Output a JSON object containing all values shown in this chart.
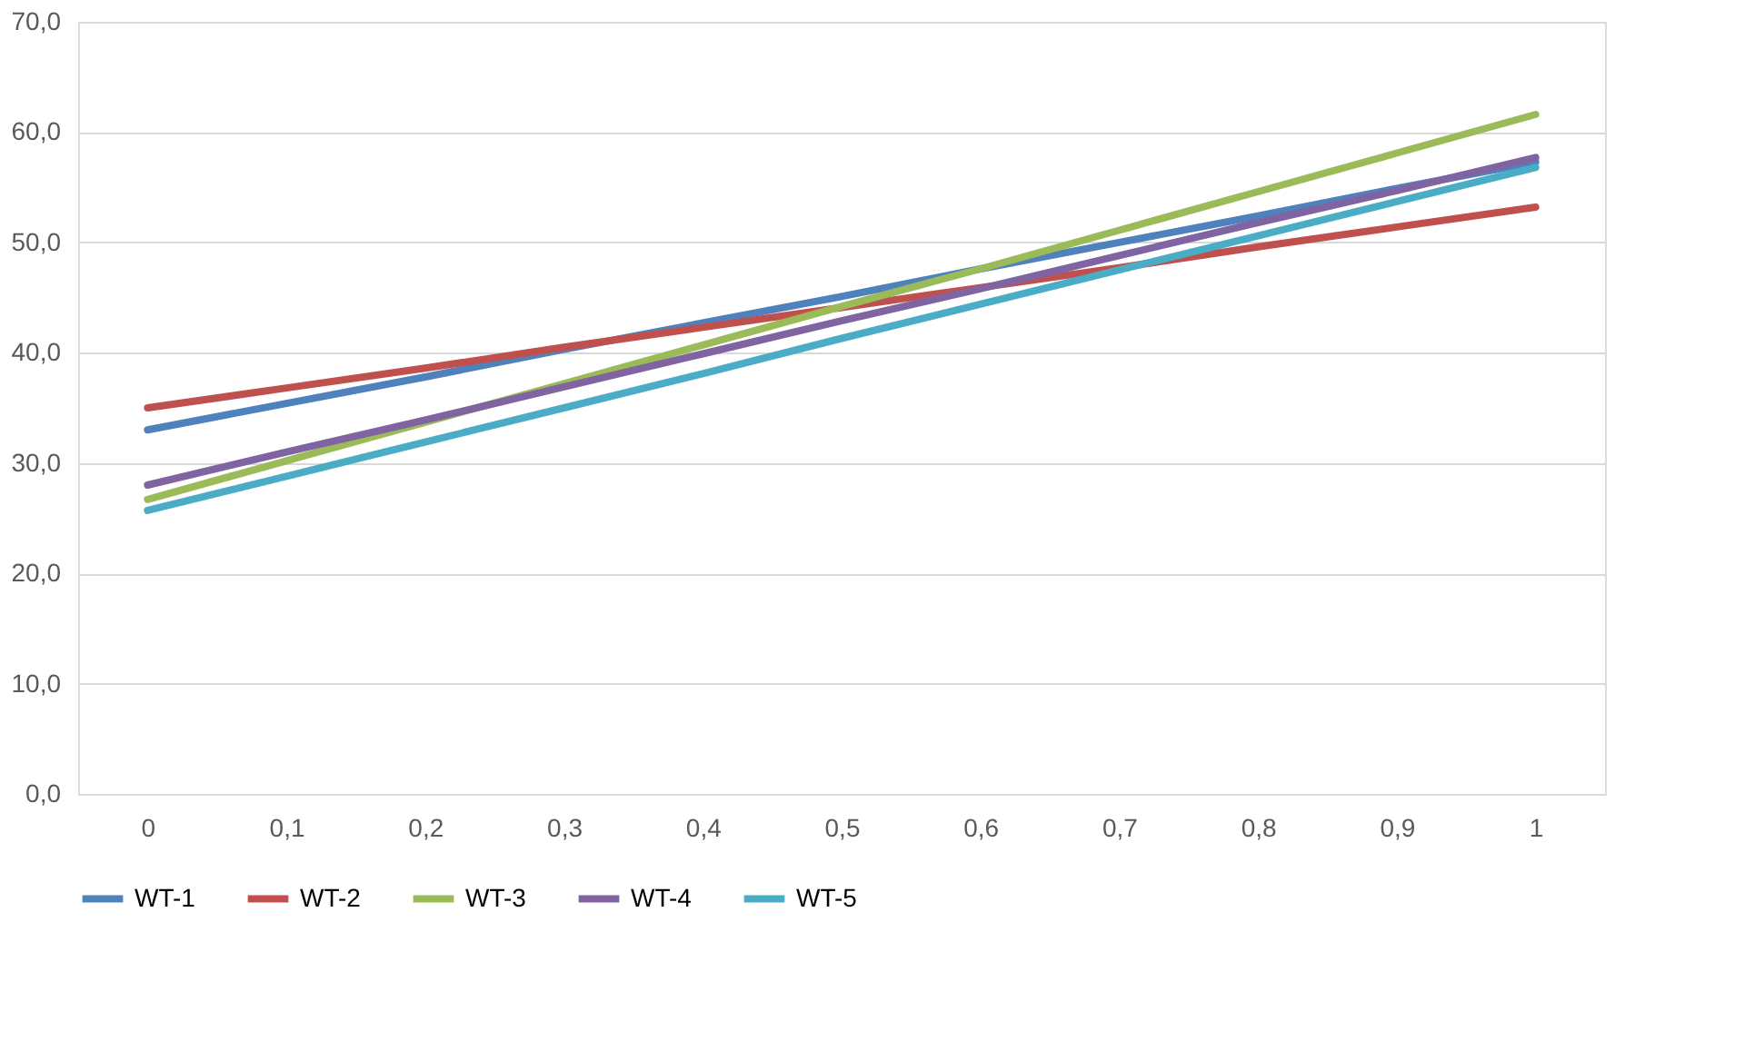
{
  "chart_data": {
    "type": "line",
    "categories": [
      "0",
      "0,1",
      "0,2",
      "0,3",
      "0,4",
      "0,5",
      "0,6",
      "0,7",
      "0,8",
      "0,9",
      "1"
    ],
    "series": [
      {
        "name": "WT-1",
        "color": "#4f81bd",
        "values": [
          33,
          35.4,
          37.8,
          40.3,
          42.7,
          45.1,
          47.6,
          50.0,
          52.4,
          54.9,
          57.3
        ]
      },
      {
        "name": "WT-2",
        "color": "#c0504d",
        "values": [
          35,
          36.8,
          38.6,
          40.5,
          42.3,
          44.1,
          45.9,
          47.7,
          49.6,
          51.4,
          53.2
        ]
      },
      {
        "name": "WT-3",
        "color": "#9bbb59",
        "values": [
          26.7,
          30.2,
          33.7,
          37.2,
          40.7,
          44.2,
          47.6,
          51.1,
          54.6,
          58.1,
          61.6
        ]
      },
      {
        "name": "WT-4",
        "color": "#8064a2",
        "values": [
          28,
          31,
          33.9,
          36.9,
          39.9,
          42.9,
          45.8,
          48.8,
          51.8,
          54.7,
          57.7
        ]
      },
      {
        "name": "WT-5",
        "color": "#4bacc6",
        "values": [
          25.7,
          28.8,
          31.9,
          35,
          38.1,
          41.3,
          44.4,
          47.5,
          50.6,
          53.7,
          56.8
        ]
      }
    ],
    "ylim": [
      0,
      70
    ],
    "yticks": [
      {
        "value": 0,
        "label": "0,0"
      },
      {
        "value": 10,
        "label": "10,0"
      },
      {
        "value": 20,
        "label": "20,0"
      },
      {
        "value": 30,
        "label": "30,0"
      },
      {
        "value": 40,
        "label": "40,0"
      },
      {
        "value": 50,
        "label": "50,0"
      },
      {
        "value": 60,
        "label": "60,0"
      },
      {
        "value": 70,
        "label": "70,0"
      }
    ],
    "grid": "y",
    "legend": "bottom",
    "marker": "none",
    "line_style": "solid"
  }
}
